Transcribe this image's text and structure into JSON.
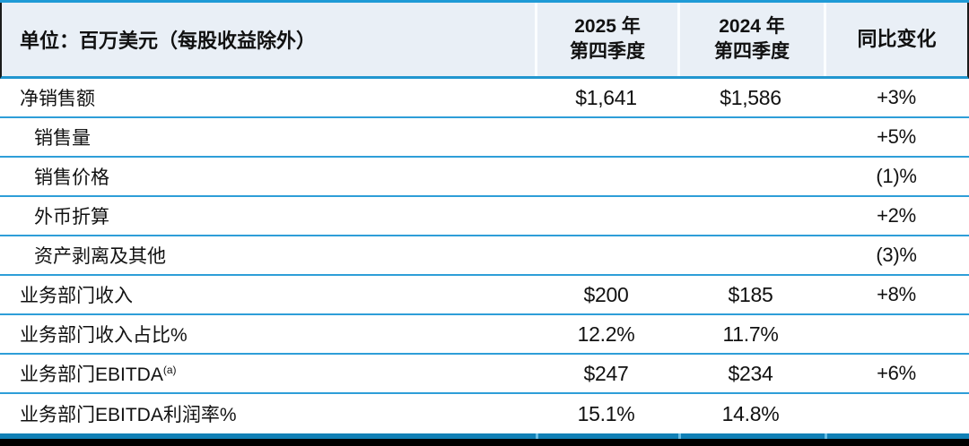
{
  "header": {
    "unit_label": "单位：百万美元（每股收益除外）",
    "col_2025_line1": "2025 年",
    "col_2025_line2": "第四季度",
    "col_2024_line1": "2024 年",
    "col_2024_line2": "第四季度",
    "col_yoy": "同比变化"
  },
  "rows": [
    {
      "label": "净销售额",
      "v2025": "$1,641",
      "v2024": "$1,586",
      "yoy": "+3%"
    },
    {
      "label": "销售量",
      "v2025": "",
      "v2024": "",
      "yoy": "+5%"
    },
    {
      "label": "销售价格",
      "v2025": "",
      "v2024": "",
      "yoy": "(1)%"
    },
    {
      "label": "外币折算",
      "v2025": "",
      "v2024": "",
      "yoy": "+2%"
    },
    {
      "label": "资产剥离及其他",
      "v2025": "",
      "v2024": "",
      "yoy": "(3)%"
    },
    {
      "label": "业务部门收入",
      "v2025": "$200",
      "v2024": "$185",
      "yoy": "+8%"
    },
    {
      "label": "业务部门收入占比%",
      "v2025": "12.2%",
      "v2024": "11.7%",
      "yoy": ""
    },
    {
      "label": "业务部门EBITDA",
      "label_sup": "(a)",
      "v2025": "$247",
      "v2024": "$234",
      "yoy": "+6%"
    },
    {
      "label": "业务部门EBITDA利润率%",
      "v2025": "15.1%",
      "v2024": "14.8%",
      "yoy": ""
    }
  ],
  "colors": {
    "top_border": "#1e9ad6",
    "header_background": "#e9eff6",
    "row_divider": "#2e9ed8",
    "bottom_band": "#1180b6",
    "bottom_tick": "#67bde4",
    "black_band": "#000000",
    "text": "#111111"
  }
}
